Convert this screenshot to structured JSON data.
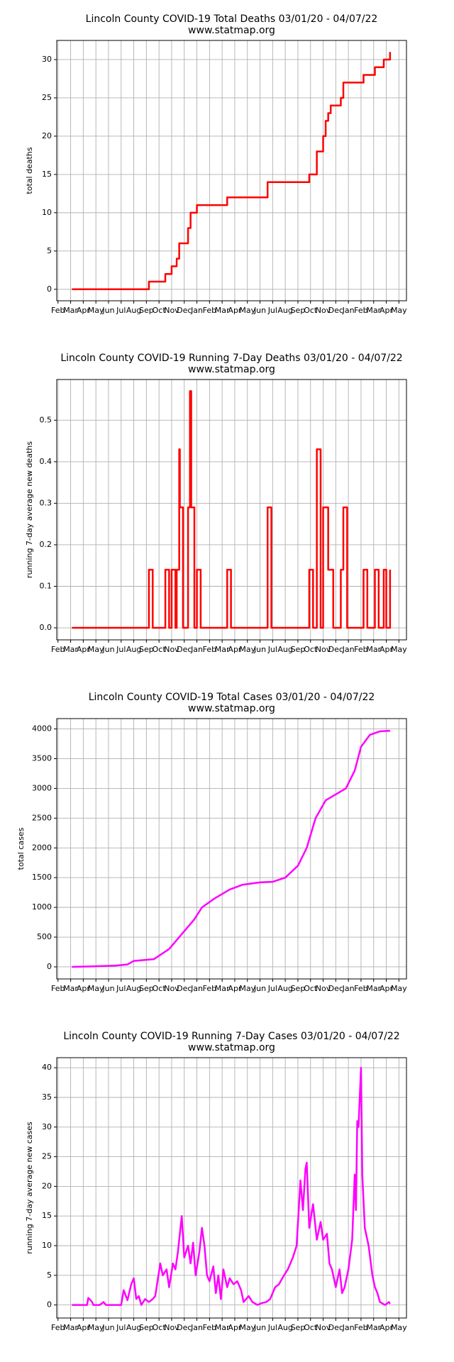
{
  "chart_data": [
    {
      "type": "line",
      "step": "post",
      "title": "Lincoln County COVID-19 Total Deaths 03/01/20 - 04/07/22",
      "subtitle": "www.statmap.org",
      "ylabel": "total deaths",
      "color": "#ff0000",
      "x": [
        1.1,
        7.2,
        8.5,
        9.0,
        9.4,
        9.6,
        10.3,
        10.5,
        11.0,
        13.4,
        16.6,
        19.9,
        20.5,
        21.0,
        21.2,
        21.4,
        21.6,
        22.4,
        22.6,
        24.2,
        25.1,
        25.8,
        26.3
      ],
      "values": [
        0,
        1,
        2,
        3,
        4,
        6,
        8,
        10,
        11,
        12,
        14,
        15,
        18,
        20,
        22,
        23,
        24,
        25,
        27,
        28,
        29,
        30,
        31
      ],
      "xlim": [
        -0.1,
        27.6
      ],
      "ylim": [
        -1.5,
        32.5
      ],
      "yticks": [
        0,
        5,
        10,
        15,
        20,
        25,
        30
      ],
      "grid": true,
      "xticks": [
        {
          "value": 0,
          "label": "Feb"
        },
        {
          "value": 1,
          "label": "Mar"
        },
        {
          "value": 2,
          "label": "Apr"
        },
        {
          "value": 3,
          "label": "May"
        },
        {
          "value": 4,
          "label": "Jun"
        },
        {
          "value": 5,
          "label": "Jul"
        },
        {
          "value": 6,
          "label": "Aug"
        },
        {
          "value": 7,
          "label": "Sep"
        },
        {
          "value": 8,
          "label": "Oct"
        },
        {
          "value": 9,
          "label": "Nov"
        },
        {
          "value": 10,
          "label": "Dec"
        },
        {
          "value": 11,
          "label": "Jan"
        },
        {
          "value": 12,
          "label": "Feb"
        },
        {
          "value": 13,
          "label": "Mar"
        },
        {
          "value": 14,
          "label": "Apr"
        },
        {
          "value": 15,
          "label": "May"
        },
        {
          "value": 16,
          "label": "Jun"
        },
        {
          "value": 17,
          "label": "Jul"
        },
        {
          "value": 18,
          "label": "Aug"
        },
        {
          "value": 19,
          "label": "Sep"
        },
        {
          "value": 20,
          "label": "Oct"
        },
        {
          "value": 21,
          "label": "Nov"
        },
        {
          "value": 22,
          "label": "Dec"
        },
        {
          "value": 23,
          "label": "Jan"
        },
        {
          "value": 24,
          "label": "Feb"
        },
        {
          "value": 25,
          "label": "Mar"
        },
        {
          "value": 26,
          "label": "Apr"
        },
        {
          "value": 27,
          "label": "May"
        }
      ]
    },
    {
      "type": "line",
      "step": "post",
      "title": "Lincoln County COVID-19 Running 7-Day Deaths 03/01/20 - 04/07/22",
      "subtitle": "www.statmap.org",
      "ylabel": "running 7-day average new deaths",
      "color": "#ff0000",
      "x": [
        1.1,
        7.2,
        7.5,
        8.5,
        8.8,
        9.0,
        9.3,
        9.4,
        9.6,
        9.65,
        9.9,
        10.3,
        10.45,
        10.55,
        10.8,
        11.0,
        11.3,
        13.4,
        13.7,
        16.6,
        16.9,
        19.9,
        20.2,
        20.5,
        20.8,
        21.0,
        21.4,
        21.8,
        22.4,
        22.6,
        22.9,
        24.2,
        24.5,
        25.1,
        25.4,
        25.8,
        26.0,
        26.3
      ],
      "values": [
        0,
        0.14,
        0,
        0.14,
        0,
        0.14,
        0,
        0.14,
        0.43,
        0.29,
        0,
        0.29,
        0.57,
        0.29,
        0,
        0.14,
        0,
        0.14,
        0,
        0.29,
        0,
        0.14,
        0,
        0.43,
        0,
        0.29,
        0.14,
        0,
        0.14,
        0.29,
        0,
        0.14,
        0,
        0.14,
        0,
        0.14,
        0,
        0.14
      ],
      "xlim": [
        -0.1,
        27.6
      ],
      "ylim": [
        -0.029,
        0.598
      ],
      "yticks": [
        {
          "value": 0,
          "label": "0.0"
        },
        0.1,
        0.2,
        0.3,
        0.4,
        0.5
      ],
      "grid": true,
      "xticks": [
        {
          "value": 0,
          "label": "Feb"
        },
        {
          "value": 1,
          "label": "Mar"
        },
        {
          "value": 2,
          "label": "Apr"
        },
        {
          "value": 3,
          "label": "May"
        },
        {
          "value": 4,
          "label": "Jun"
        },
        {
          "value": 5,
          "label": "Jul"
        },
        {
          "value": 6,
          "label": "Aug"
        },
        {
          "value": 7,
          "label": "Sep"
        },
        {
          "value": 8,
          "label": "Oct"
        },
        {
          "value": 9,
          "label": "Nov"
        },
        {
          "value": 10,
          "label": "Dec"
        },
        {
          "value": 11,
          "label": "Jan"
        },
        {
          "value": 12,
          "label": "Feb"
        },
        {
          "value": 13,
          "label": "Mar"
        },
        {
          "value": 14,
          "label": "Apr"
        },
        {
          "value": 15,
          "label": "May"
        },
        {
          "value": 16,
          "label": "Jun"
        },
        {
          "value": 17,
          "label": "Jul"
        },
        {
          "value": 18,
          "label": "Aug"
        },
        {
          "value": 19,
          "label": "Sep"
        },
        {
          "value": 20,
          "label": "Oct"
        },
        {
          "value": 21,
          "label": "Nov"
        },
        {
          "value": 22,
          "label": "Dec"
        },
        {
          "value": 23,
          "label": "Jan"
        },
        {
          "value": 24,
          "label": "Feb"
        },
        {
          "value": 25,
          "label": "Mar"
        },
        {
          "value": 26,
          "label": "Apr"
        },
        {
          "value": 27,
          "label": "May"
        }
      ]
    },
    {
      "type": "line",
      "title": "Lincoln County COVID-19 Total Cases 03/01/20 - 04/07/22",
      "subtitle": "www.statmap.org",
      "ylabel": "total cases",
      "color": "#ff00ff",
      "x": [
        1.1,
        3,
        4.5,
        5.5,
        6.0,
        7.6,
        8.8,
        10.0,
        10.8,
        11.4,
        12.4,
        13.6,
        14.6,
        16.0,
        17.0,
        18.0,
        19.0,
        19.7,
        20.4,
        21.2,
        22.8,
        23.5,
        24.0,
        24.7,
        25.5,
        26.3
      ],
      "values": [
        0,
        10,
        20,
        40,
        100,
        130,
        300,
        600,
        800,
        1000,
        1150,
        1300,
        1380,
        1420,
        1430,
        1500,
        1700,
        2000,
        2500,
        2800,
        3000,
        3300,
        3700,
        3900,
        3960,
        3970
      ],
      "xlim": [
        -0.1,
        27.6
      ],
      "ylim": [
        -203,
        4174
      ],
      "yticks": [
        0,
        500,
        1000,
        1500,
        2000,
        2500,
        3000,
        3500,
        4000
      ],
      "grid": true,
      "xticks": [
        {
          "value": 0,
          "label": "Feb"
        },
        {
          "value": 1,
          "label": "Mar"
        },
        {
          "value": 2,
          "label": "Apr"
        },
        {
          "value": 3,
          "label": "May"
        },
        {
          "value": 4,
          "label": "Jun"
        },
        {
          "value": 5,
          "label": "Jul"
        },
        {
          "value": 6,
          "label": "Aug"
        },
        {
          "value": 7,
          "label": "Sep"
        },
        {
          "value": 8,
          "label": "Oct"
        },
        {
          "value": 9,
          "label": "Nov"
        },
        {
          "value": 10,
          "label": "Dec"
        },
        {
          "value": 11,
          "label": "Jan"
        },
        {
          "value": 12,
          "label": "Feb"
        },
        {
          "value": 13,
          "label": "Mar"
        },
        {
          "value": 14,
          "label": "Apr"
        },
        {
          "value": 15,
          "label": "May"
        },
        {
          "value": 16,
          "label": "Jun"
        },
        {
          "value": 17,
          "label": "Jul"
        },
        {
          "value": 18,
          "label": "Aug"
        },
        {
          "value": 19,
          "label": "Sep"
        },
        {
          "value": 20,
          "label": "Oct"
        },
        {
          "value": 21,
          "label": "Nov"
        },
        {
          "value": 22,
          "label": "Dec"
        },
        {
          "value": 23,
          "label": "Jan"
        },
        {
          "value": 24,
          "label": "Feb"
        },
        {
          "value": 25,
          "label": "Mar"
        },
        {
          "value": 26,
          "label": "Apr"
        },
        {
          "value": 27,
          "label": "May"
        }
      ]
    },
    {
      "type": "line",
      "title": "Lincoln County COVID-19 Running 7-Day Cases 03/01/20 - 04/07/22",
      "subtitle": "www.statmap.org",
      "ylabel": "running 7-day average new cases",
      "color": "#ff00ff",
      "x": [
        1.1,
        2.3,
        2.4,
        2.7,
        2.8,
        3.3,
        3.6,
        3.8,
        5.0,
        5.2,
        5.5,
        5.8,
        6.0,
        6.2,
        6.4,
        6.6,
        6.9,
        7.2,
        7.5,
        7.7,
        8.1,
        8.3,
        8.6,
        8.8,
        9.1,
        9.3,
        9.5,
        9.8,
        10.0,
        10.3,
        10.5,
        10.7,
        10.9,
        11.2,
        11.4,
        11.6,
        11.8,
        12.0,
        12.3,
        12.5,
        12.7,
        12.9,
        13.1,
        13.4,
        13.6,
        13.9,
        14.2,
        14.5,
        14.7,
        15.1,
        15.4,
        15.8,
        16.1,
        16.5,
        16.8,
        17.2,
        17.5,
        17.9,
        18.2,
        18.6,
        18.9,
        19.2,
        19.4,
        19.6,
        19.7,
        19.9,
        20.2,
        20.5,
        20.8,
        21.0,
        21.3,
        21.5,
        21.7,
        22.0,
        22.3,
        22.5,
        22.7,
        23.0,
        23.3,
        23.5,
        23.6,
        23.7,
        23.8,
        24.0,
        24.1,
        24.3,
        24.6,
        24.9,
        25.1,
        25.3,
        25.5,
        25.9,
        26.2,
        26.3
      ],
      "values": [
        0,
        0,
        1.2,
        0.5,
        0,
        0,
        0.5,
        0,
        0,
        2.5,
        0.8,
        3.5,
        4.5,
        1,
        1.5,
        0,
        1,
        0.5,
        1,
        1.5,
        7,
        5,
        6,
        3,
        7,
        6,
        9,
        15,
        8,
        10,
        7,
        10.5,
        5,
        9,
        13,
        10,
        5,
        4,
        6.5,
        2,
        5,
        1,
        6,
        3,
        4.5,
        3.5,
        4,
        2.5,
        0.5,
        1.5,
        0.5,
        0,
        0.3,
        0.5,
        1,
        3,
        3.5,
        5,
        6,
        8,
        10,
        21,
        16,
        23,
        24,
        13,
        17,
        11,
        14,
        11,
        12,
        7,
        6,
        3,
        6,
        2,
        3,
        6,
        11,
        22,
        16,
        31,
        30,
        40,
        22,
        13,
        10,
        5,
        3,
        2,
        0.5,
        0,
        0.5,
        0.2
      ],
      "xlim": [
        -0.1,
        27.6
      ],
      "ylim": [
        -2.2,
        41.7
      ],
      "yticks": [
        0,
        5,
        10,
        15,
        20,
        25,
        30,
        35,
        40
      ],
      "grid": true,
      "xticks": [
        {
          "value": 0,
          "label": "Feb"
        },
        {
          "value": 1,
          "label": "Mar"
        },
        {
          "value": 2,
          "label": "Apr"
        },
        {
          "value": 3,
          "label": "May"
        },
        {
          "value": 4,
          "label": "Jun"
        },
        {
          "value": 5,
          "label": "Jul"
        },
        {
          "value": 6,
          "label": "Aug"
        },
        {
          "value": 7,
          "label": "Sep"
        },
        {
          "value": 8,
          "label": "Oct"
        },
        {
          "value": 9,
          "label": "Nov"
        },
        {
          "value": 10,
          "label": "Dec"
        },
        {
          "value": 11,
          "label": "Jan"
        },
        {
          "value": 12,
          "label": "Feb"
        },
        {
          "value": 13,
          "label": "Mar"
        },
        {
          "value": 14,
          "label": "Apr"
        },
        {
          "value": 15,
          "label": "May"
        },
        {
          "value": 16,
          "label": "Jun"
        },
        {
          "value": 17,
          "label": "Jul"
        },
        {
          "value": 18,
          "label": "Aug"
        },
        {
          "value": 19,
          "label": "Sep"
        },
        {
          "value": 20,
          "label": "Oct"
        },
        {
          "value": 21,
          "label": "Nov"
        },
        {
          "value": 22,
          "label": "Dec"
        },
        {
          "value": 23,
          "label": "Jan"
        },
        {
          "value": 24,
          "label": "Feb"
        },
        {
          "value": 25,
          "label": "Mar"
        },
        {
          "value": 26,
          "label": "Apr"
        },
        {
          "value": 27,
          "label": "May"
        }
      ]
    }
  ]
}
